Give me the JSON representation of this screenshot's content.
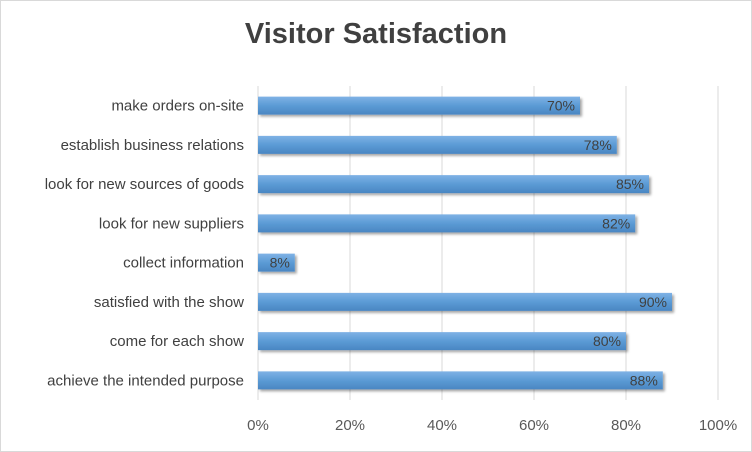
{
  "chart_data": {
    "type": "bar",
    "orientation": "horizontal",
    "title": "Visitor Satisfaction",
    "xlabel": "",
    "ylabel": "",
    "categories": [
      "make orders on-site",
      "establish business relations",
      "look for new sources of goods",
      "look for new suppliers",
      "collect information",
      "satisfied with the show",
      "come for each show",
      "achieve the intended purpose"
    ],
    "values": [
      70,
      78,
      85,
      82,
      8,
      90,
      80,
      88
    ],
    "data_labels": [
      "70%",
      "78%",
      "85%",
      "82%",
      "8%",
      "90%",
      "80%",
      "88%"
    ],
    "xlim": [
      0,
      100
    ],
    "x_ticks": [
      "0%",
      "20%",
      "40%",
      "60%",
      "80%",
      "100%"
    ],
    "grid": "vertical",
    "bar_color": "#5b9bd5",
    "legend": "none"
  }
}
